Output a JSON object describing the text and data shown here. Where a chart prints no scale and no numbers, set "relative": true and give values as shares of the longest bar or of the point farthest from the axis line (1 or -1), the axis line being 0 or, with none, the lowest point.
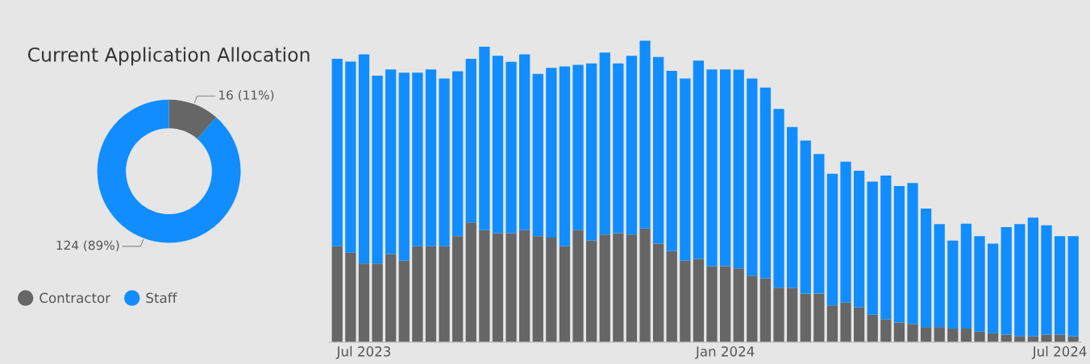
{
  "chart_data": [
    {
      "type": "donut",
      "title": "Current Application Allocation",
      "categories": [
        "Contractor",
        "Staff"
      ],
      "values": [
        16,
        124
      ],
      "colors": [
        "#666666",
        "#118dff"
      ],
      "value_labels": [
        "16 (11%)",
        "124 (89%)"
      ],
      "legend": "bottom left"
    },
    {
      "type": "bar",
      "stacked": true,
      "relative": true,
      "legend": false,
      "categories": [
        null,
        null,
        "Jul 2023",
        null,
        null,
        null,
        null,
        null,
        null,
        null,
        null,
        null,
        null,
        null,
        null,
        null,
        null,
        null,
        null,
        null,
        null,
        null,
        null,
        null,
        null,
        null,
        null,
        null,
        null,
        "Jan 2024",
        null,
        null,
        null,
        null,
        null,
        null,
        null,
        null,
        null,
        null,
        null,
        null,
        null,
        null,
        null,
        null,
        null,
        null,
        null,
        null,
        null,
        null,
        null,
        null,
        "Jul 2024",
        null
      ],
      "series": [
        {
          "color": "#666666",
          "values": [
            0.318,
            0.297,
            0.261,
            0.261,
            0.292,
            0.27,
            0.318,
            0.318,
            0.318,
            0.352,
            0.397,
            0.372,
            0.362,
            0.362,
            0.372,
            0.352,
            0.347,
            0.318,
            0.372,
            0.338,
            0.357,
            0.362,
            0.357,
            0.377,
            0.327,
            0.302,
            0.27,
            0.276,
            0.252,
            0.252,
            0.245,
            0.221,
            0.212,
            0.181,
            0.181,
            0.161,
            0.161,
            0.122,
            0.131,
            0.116,
            0.091,
            0.076,
            0.065,
            0.06,
            0.05,
            0.05,
            0.045,
            0.045,
            0.035,
            0.03,
            0.025,
            0.02,
            0.02,
            0.025,
            0.025,
            0.02
          ]
        },
        {
          "color": "#118dff",
          "values": [
            0.622,
            0.634,
            0.694,
            0.623,
            0.613,
            0.624,
            0.576,
            0.587,
            0.557,
            0.547,
            0.543,
            0.608,
            0.588,
            0.568,
            0.583,
            0.538,
            0.563,
            0.597,
            0.548,
            0.587,
            0.604,
            0.563,
            0.593,
            0.623,
            0.619,
            0.598,
            0.605,
            0.658,
            0.653,
            0.653,
            0.659,
            0.654,
            0.633,
            0.593,
            0.533,
            0.508,
            0.463,
            0.437,
            0.468,
            0.453,
            0.442,
            0.477,
            0.453,
            0.468,
            0.393,
            0.342,
            0.292,
            0.348,
            0.317,
            0.297,
            0.357,
            0.372,
            0.393,
            0.363,
            0.327,
            0.332
          ]
        }
      ]
    }
  ]
}
